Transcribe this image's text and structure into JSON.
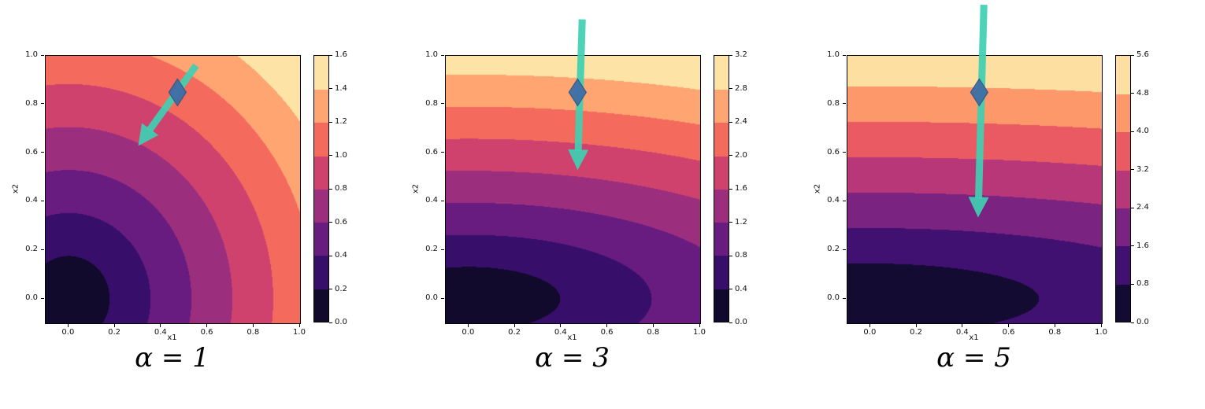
{
  "figure": {
    "background_color": "#ffffff"
  },
  "chart_data": [
    {
      "type": "contour",
      "caption": "α = 1",
      "alpha": 1,
      "field": "f(x1,x2) = sqrt(x1^2 + (alpha*x2)^2), filled contours, normalized so f(1,1) = max level",
      "colormap": "magma",
      "xlabel": "x1",
      "ylabel": "x2",
      "xlim": [
        -0.1,
        1.0
      ],
      "ylim": [
        -0.1,
        1.0
      ],
      "x_ticks": [
        0.0,
        0.2,
        0.4,
        0.6,
        0.8,
        1.0
      ],
      "y_ticks": [
        0.0,
        0.2,
        0.4,
        0.6,
        0.8,
        1.0
      ],
      "levels": [
        0.0,
        0.2,
        0.4,
        0.6,
        0.8,
        1.0,
        1.2,
        1.4,
        1.6
      ],
      "colorbar_ticks": [
        0.0,
        0.2,
        0.4,
        0.6,
        0.8,
        1.0,
        1.2,
        1.4,
        1.6
      ],
      "marker": {
        "shape": "thin-diamond",
        "x": 0.47,
        "y": 0.85,
        "color": "#3e6da7",
        "edge_color": "#31577f"
      },
      "arrow": {
        "x_start": 0.55,
        "y_start": 0.96,
        "x_end": 0.3,
        "y_end": 0.63,
        "color": "#3fd0b2"
      }
    },
    {
      "type": "contour",
      "caption": "α = 3",
      "alpha": 3,
      "field": "f(x1,x2) = sqrt(x1^2 + (alpha*x2)^2), filled contours, normalized so f(1,1) = max level",
      "colormap": "magma",
      "xlabel": "x1",
      "ylabel": "x2",
      "xlim": [
        -0.1,
        1.0
      ],
      "ylim": [
        -0.1,
        1.0
      ],
      "x_ticks": [
        0.0,
        0.2,
        0.4,
        0.6,
        0.8,
        1.0
      ],
      "y_ticks": [
        0.0,
        0.2,
        0.4,
        0.6,
        0.8,
        1.0
      ],
      "levels": [
        0.0,
        0.4,
        0.8,
        1.2,
        1.6,
        2.0,
        2.4,
        2.8,
        3.2
      ],
      "colorbar_ticks": [
        0.0,
        0.4,
        0.8,
        1.2,
        1.6,
        2.0,
        2.4,
        2.8,
        3.2
      ],
      "marker": {
        "shape": "thin-diamond",
        "x": 0.47,
        "y": 0.85,
        "color": "#3e6da7",
        "edge_color": "#31577f"
      },
      "arrow": {
        "x_start": 0.49,
        "y_start": 1.15,
        "x_end": 0.47,
        "y_end": 0.53,
        "color": "#3fd0b2"
      }
    },
    {
      "type": "contour",
      "caption": "α = 5",
      "alpha": 5,
      "field": "f(x1,x2) = sqrt(x1^2 + (alpha*x2)^2), filled contours, normalized so f(1,1) = max level",
      "colormap": "magma",
      "xlabel": "x1",
      "ylabel": "x2",
      "xlim": [
        -0.1,
        1.0
      ],
      "ylim": [
        -0.1,
        1.0
      ],
      "x_ticks": [
        0.0,
        0.2,
        0.4,
        0.6,
        0.8,
        1.0
      ],
      "y_ticks": [
        0.0,
        0.2,
        0.4,
        0.6,
        0.8,
        1.0
      ],
      "levels": [
        0.0,
        0.8,
        1.6,
        2.4,
        3.2,
        4.0,
        4.8,
        5.6
      ],
      "colorbar_ticks": [
        0.0,
        0.8,
        1.6,
        2.4,
        3.2,
        4.0,
        4.8,
        5.6
      ],
      "marker": {
        "shape": "thin-diamond",
        "x": 0.47,
        "y": 0.85,
        "color": "#3e6da7",
        "edge_color": "#31577f"
      },
      "arrow": {
        "x_start": 0.49,
        "y_start": 1.21,
        "x_end": 0.465,
        "y_end": 0.335,
        "color": "#3fd0b2"
      }
    }
  ]
}
